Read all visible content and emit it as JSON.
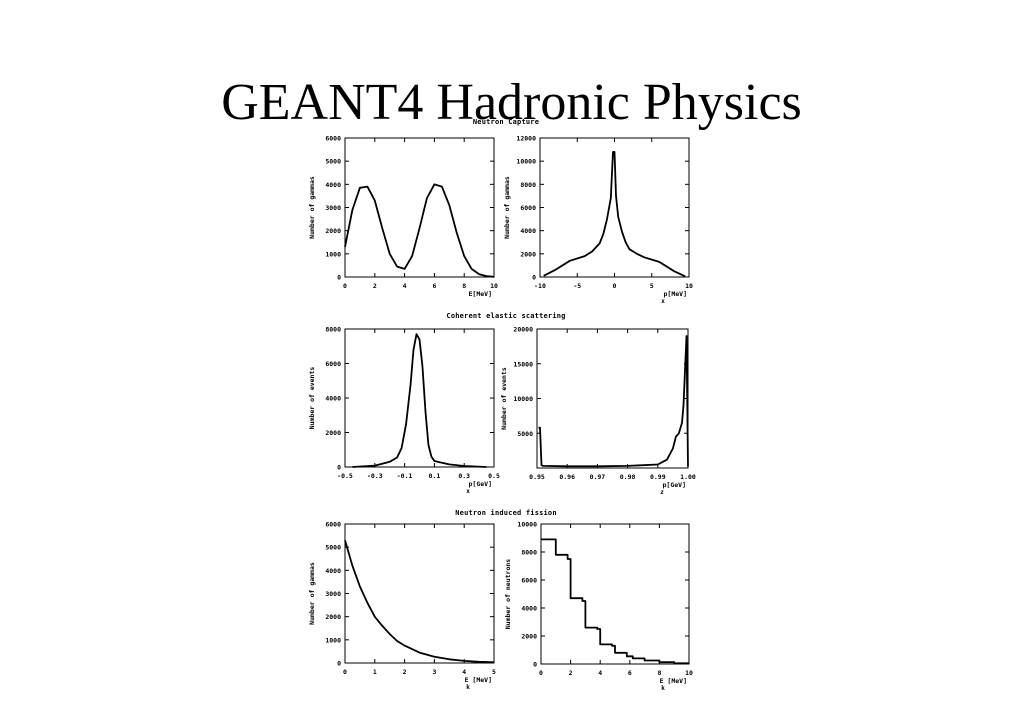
{
  "slide": {
    "title": "GEANT4 Hadronic Physics"
  },
  "sections": [
    "Neutron Capture",
    "Coherent elastic scattering",
    "Neutron induced fission"
  ],
  "chart_data": [
    {
      "type": "line",
      "section": 0,
      "xlabel": "E[MeV]",
      "ylabel": "Number of gammas",
      "xlim": [
        0,
        10
      ],
      "ylim": [
        0,
        6000
      ],
      "xticks": [
        0,
        2,
        4,
        6,
        8,
        10
      ],
      "yticks": [
        0,
        1000,
        2000,
        3000,
        4000,
        5000,
        6000
      ],
      "series": [
        {
          "x": [
            0,
            0.5,
            1,
            1.5,
            2,
            2.5,
            3,
            3.5,
            4,
            4.5,
            5,
            5.5,
            6,
            6.5,
            7,
            7.5,
            8,
            8.5,
            9,
            9.5,
            10
          ],
          "y": [
            1300,
            2900,
            3850,
            3900,
            3300,
            2100,
            1000,
            450,
            350,
            900,
            2100,
            3400,
            4000,
            3900,
            3100,
            1900,
            900,
            350,
            120,
            40,
            10
          ]
        }
      ]
    },
    {
      "type": "line",
      "section": 0,
      "xlabel": "p[MeV]",
      "xlabel_sub": "x",
      "ylabel": "Number of gammas",
      "xlim": [
        -10,
        10
      ],
      "ylim": [
        0,
        12000
      ],
      "xticks": [
        -10,
        -5,
        0,
        5,
        10
      ],
      "yticks": [
        0,
        2000,
        4000,
        6000,
        8000,
        10000,
        12000
      ],
      "series": [
        {
          "x": [
            -9.5,
            -8,
            -6,
            -4,
            -3,
            -2,
            -1.5,
            -1,
            -0.5,
            -0.2,
            0,
            0.2,
            0.5,
            1,
            1.5,
            2,
            3,
            4,
            6,
            8,
            9.5
          ],
          "y": [
            100,
            600,
            1400,
            1800,
            2200,
            2900,
            3700,
            5000,
            6800,
            10800,
            10800,
            7000,
            5200,
            3900,
            3000,
            2400,
            2000,
            1700,
            1300,
            500,
            50
          ]
        }
      ]
    },
    {
      "type": "line",
      "section": 1,
      "xlabel": "p[GeV]",
      "xlabel_sub": "x",
      "ylabel": "Number of events",
      "xlim": [
        -0.5,
        0.5
      ],
      "ylim": [
        0,
        8000
      ],
      "xticks": [
        -0.5,
        -0.3,
        -0.1,
        0.1,
        0.3,
        0.5
      ],
      "yticks": [
        0,
        2000,
        4000,
        6000,
        8000
      ],
      "series": [
        {
          "x": [
            -0.45,
            -0.3,
            -0.2,
            -0.15,
            -0.12,
            -0.09,
            -0.06,
            -0.04,
            -0.02,
            0,
            0.02,
            0.04,
            0.06,
            0.08,
            0.1,
            0.15,
            0.2,
            0.3,
            0.45
          ],
          "y": [
            0,
            80,
            300,
            550,
            1100,
            2500,
            4800,
            6800,
            7700,
            7400,
            5800,
            3200,
            1300,
            600,
            350,
            250,
            150,
            60,
            0
          ]
        }
      ]
    },
    {
      "type": "line",
      "section": 1,
      "xlabel": "p[GeV]",
      "xlabel_sub": "z",
      "ylabel": "Number of events",
      "xlim": [
        0.95,
        1.0
      ],
      "ylim": [
        0,
        20000
      ],
      "xticks": [
        0.95,
        0.96,
        0.97,
        0.98,
        0.99,
        1.0
      ],
      "xtick_labels": [
        "0.95",
        "0.96",
        "0.97",
        "0.98",
        "0.99",
        "1.00"
      ],
      "yticks": [
        5000,
        10000,
        15000,
        20000
      ],
      "series": [
        {
          "x": [
            0.9505,
            0.951,
            0.9515,
            0.952,
            0.96,
            0.97,
            0.98,
            0.99,
            0.993,
            0.995,
            0.996,
            0.997,
            0.998,
            0.9985,
            0.999,
            0.9995,
            1.0
          ],
          "y": [
            5800,
            5800,
            400,
            300,
            250,
            250,
            300,
            500,
            1200,
            2800,
            4500,
            5000,
            6500,
            9000,
            14000,
            19000,
            200
          ]
        }
      ]
    },
    {
      "type": "line",
      "section": 2,
      "xlabel": "E [MeV]",
      "xlabel_sub": "k",
      "ylabel": "Number of gammas",
      "xlim": [
        0,
        5
      ],
      "ylim": [
        0,
        6000
      ],
      "xticks": [
        0,
        1,
        2,
        3,
        4,
        5
      ],
      "yticks": [
        0,
        1000,
        2000,
        3000,
        4000,
        5000,
        6000
      ],
      "series": [
        {
          "x": [
            0,
            0.25,
            0.5,
            0.75,
            1,
            1.25,
            1.5,
            1.75,
            2,
            2.5,
            3,
            3.5,
            4,
            4.5,
            5
          ],
          "y": [
            5300,
            4200,
            3300,
            2600,
            2000,
            1600,
            1250,
            950,
            750,
            450,
            270,
            160,
            90,
            50,
            30
          ]
        }
      ]
    },
    {
      "type": "line",
      "section": 2,
      "xlabel": "E [MeV]",
      "xlabel_sub": "k",
      "ylabel": "Number of neutrons",
      "xlim": [
        0,
        10
      ],
      "ylim": [
        0,
        10000
      ],
      "xticks": [
        0,
        2,
        4,
        6,
        8,
        10
      ],
      "yticks": [
        0,
        2000,
        4000,
        6000,
        8000,
        10000
      ],
      "series": [
        {
          "x": [
            0,
            1,
            1,
            1.8,
            1.8,
            2,
            2,
            2.8,
            2.8,
            3,
            3,
            3.8,
            3.8,
            4,
            4,
            4.8,
            4.8,
            5,
            5,
            5.8,
            5.8,
            6.2,
            6.2,
            7,
            7,
            8,
            8,
            9,
            9,
            10
          ],
          "y": [
            8900,
            8900,
            7800,
            7800,
            7500,
            7500,
            4700,
            4700,
            4500,
            4500,
            2600,
            2600,
            2500,
            2500,
            1400,
            1400,
            1300,
            1300,
            800,
            800,
            550,
            550,
            400,
            400,
            250,
            250,
            130,
            130,
            50,
            50
          ]
        }
      ]
    }
  ]
}
